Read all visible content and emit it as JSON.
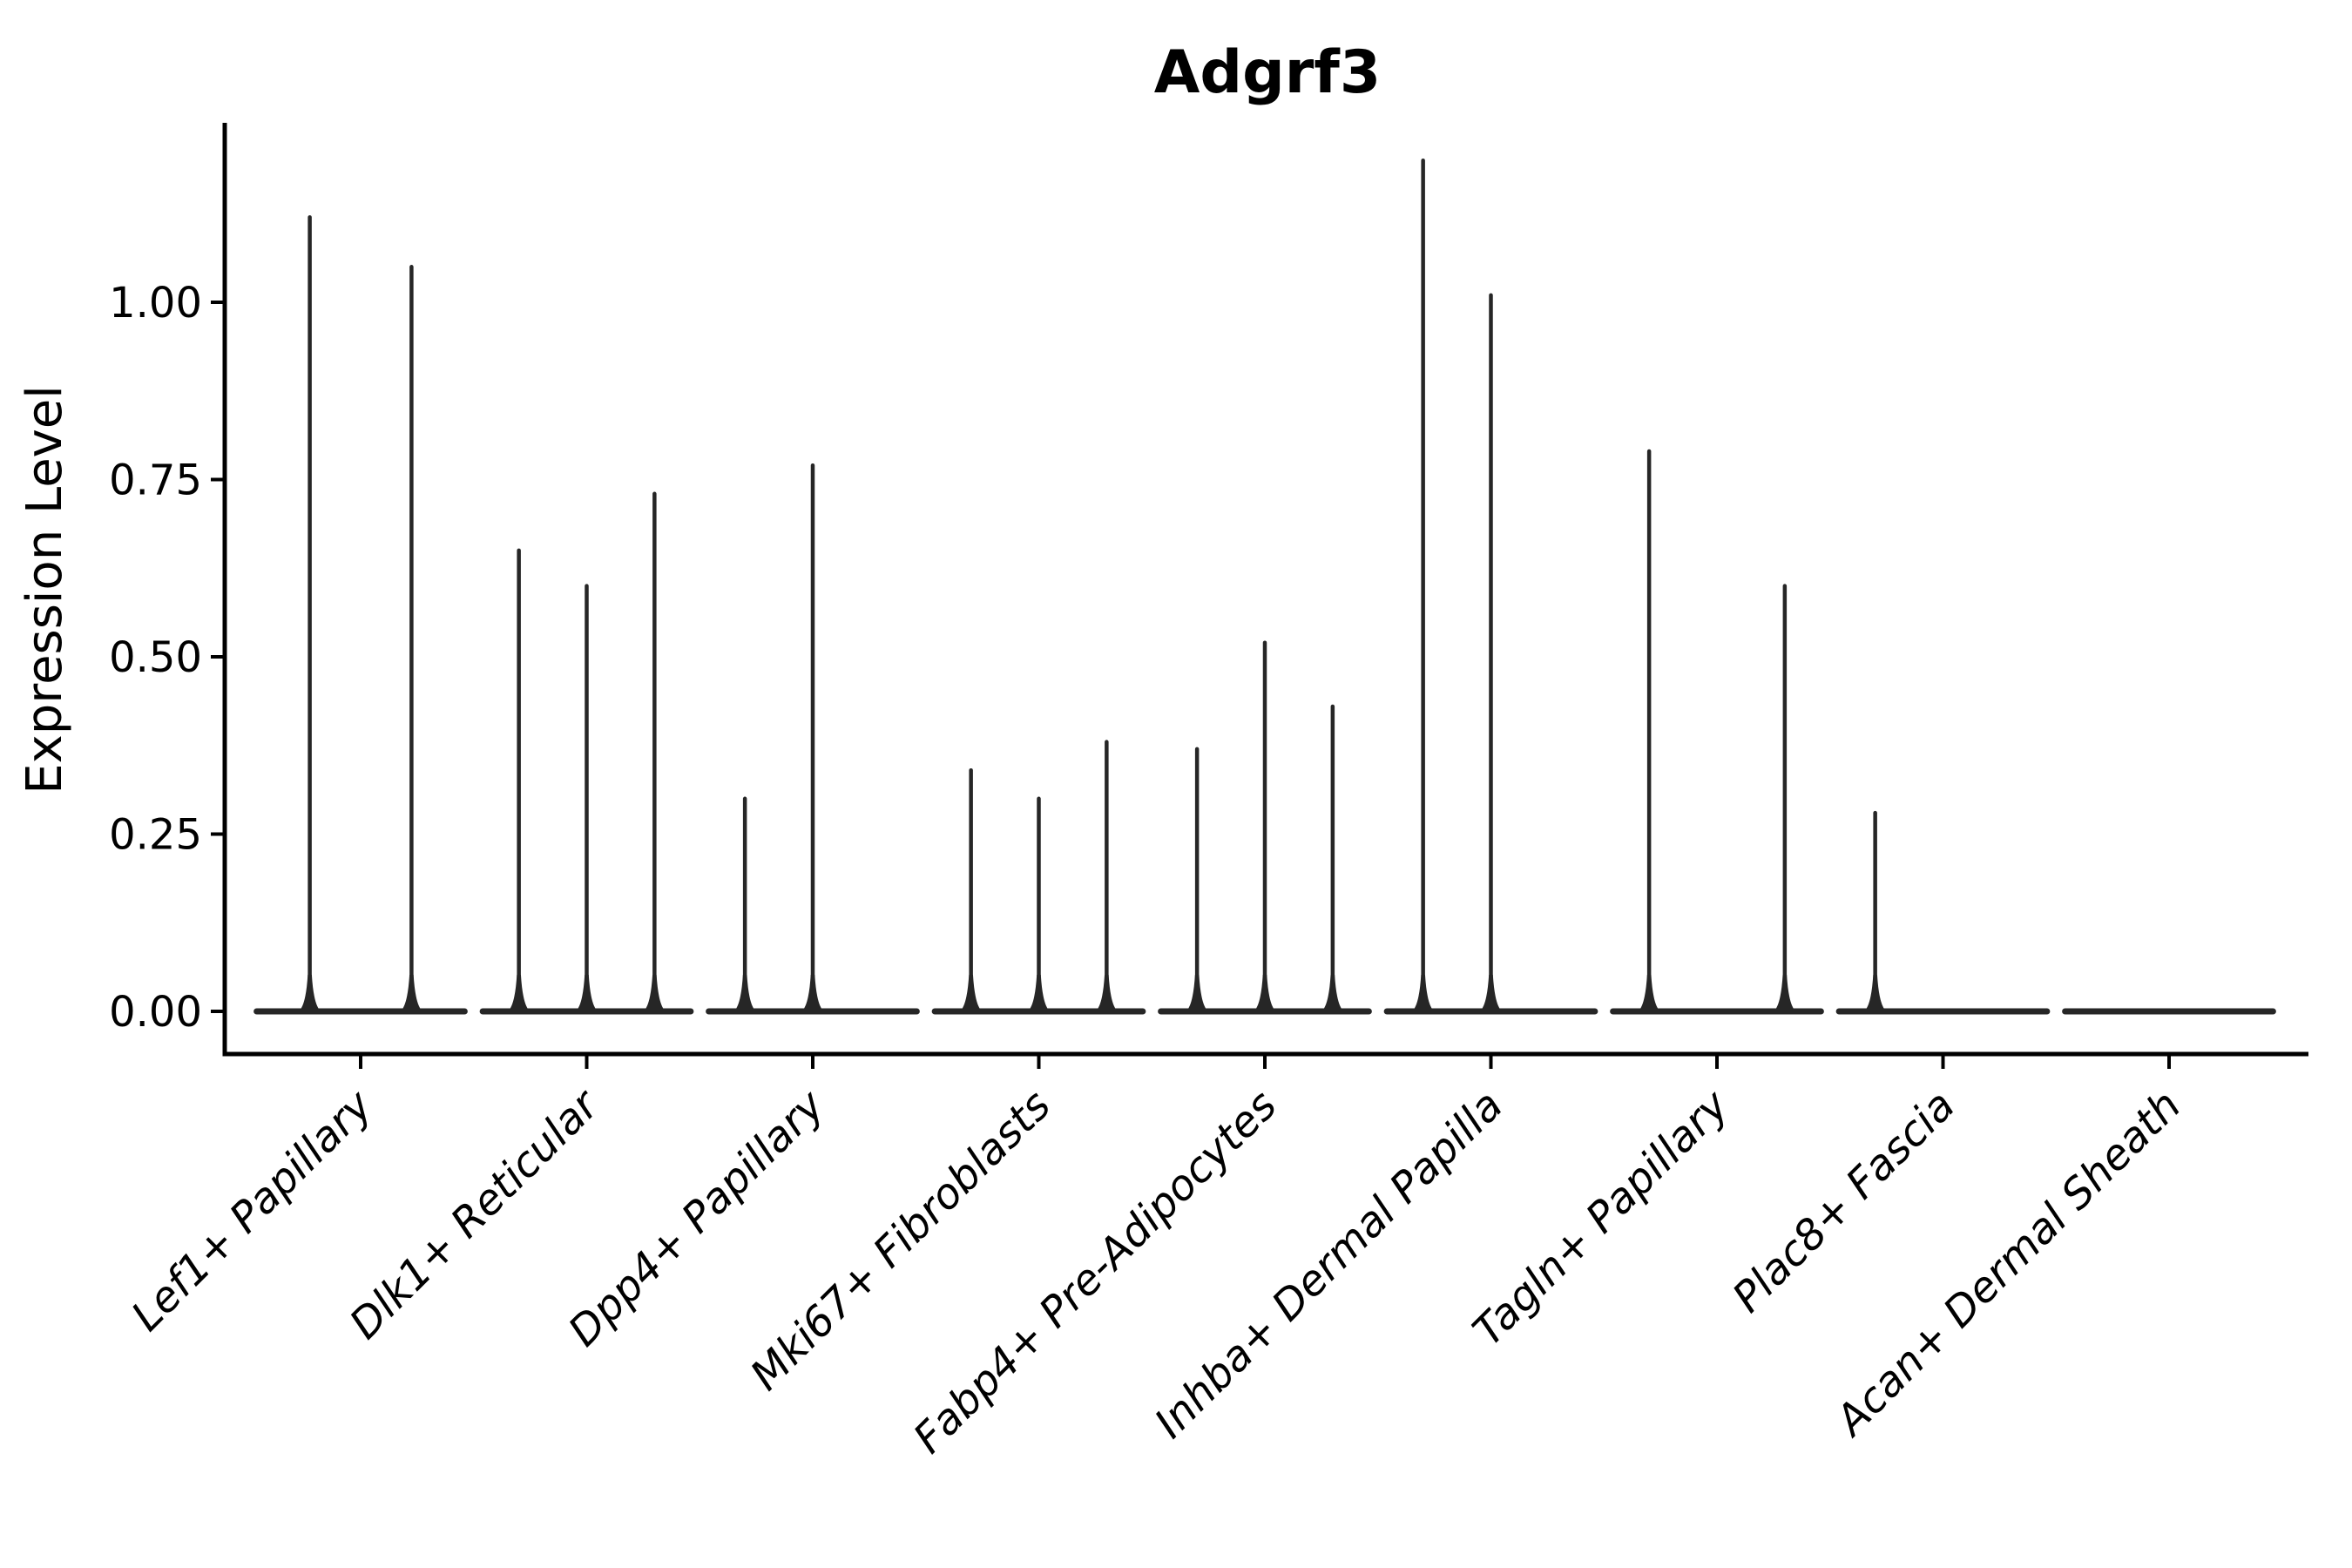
{
  "chart_data": {
    "type": "violin",
    "title": "Adgrf3",
    "ylabel": "Expression Level",
    "xlabel": "",
    "ylim": [
      -0.06,
      1.31
    ],
    "grid": false,
    "legend": "none",
    "note": "Single-cell expression violin plot; violins are collapsed to thin vertical spikes. Each category holds up to 3 dodged sub-violins (offset is fraction of category slot width); spikes list the maximum expression reached by each visible sub-violin.",
    "y_ticks": [
      {
        "value": 0.0,
        "label": "0.00"
      },
      {
        "value": 0.25,
        "label": "0.25"
      },
      {
        "value": 0.5,
        "label": "0.50"
      },
      {
        "value": 0.75,
        "label": "0.75"
      },
      {
        "value": 1.0,
        "label": "1.00"
      }
    ],
    "categories": [
      "Lef1+ Papillary",
      "Dlk1+ Reticular",
      "Dpp4+ Papillary",
      "Mki67+ Fibroblasts",
      "Fabp4+ Pre-Adipocytes",
      "Inhba+ Dermal Papilla",
      "Tagln+ Papillary",
      "Plac8+ Fascia",
      "Acan+ Dermal Sheath"
    ],
    "violins": [
      {
        "category": "Lef1+ Papillary",
        "spikes": [
          {
            "offset": -0.225,
            "max": 1.12
          },
          {
            "offset": 0.225,
            "max": 1.05
          }
        ]
      },
      {
        "category": "Dlk1+ Reticular",
        "spikes": [
          {
            "offset": -0.3,
            "max": 0.65
          },
          {
            "offset": 0,
            "max": 0.6
          },
          {
            "offset": 0.3,
            "max": 0.73
          }
        ]
      },
      {
        "category": "Dpp4+ Papillary",
        "spikes": [
          {
            "offset": -0.3,
            "max": 0.3
          },
          {
            "offset": 0,
            "max": 0.77
          }
        ]
      },
      {
        "category": "Mki67+ Fibroblasts",
        "spikes": [
          {
            "offset": -0.3,
            "max": 0.34
          },
          {
            "offset": 0,
            "max": 0.3
          },
          {
            "offset": 0.3,
            "max": 0.38
          }
        ]
      },
      {
        "category": "Fabp4+ Pre-Adipocytes",
        "spikes": [
          {
            "offset": -0.3,
            "max": 0.37
          },
          {
            "offset": 0,
            "max": 0.52
          },
          {
            "offset": 0.3,
            "max": 0.43
          }
        ]
      },
      {
        "category": "Inhba+ Dermal Papilla",
        "spikes": [
          {
            "offset": -0.3,
            "max": 1.2
          },
          {
            "offset": 0,
            "max": 1.01
          }
        ]
      },
      {
        "category": "Tagln+ Papillary",
        "spikes": [
          {
            "offset": -0.3,
            "max": 0.79
          },
          {
            "offset": 0.3,
            "max": 0.6
          }
        ]
      },
      {
        "category": "Plac8+ Fascia",
        "spikes": [
          {
            "offset": -0.3,
            "max": 0.28
          }
        ]
      },
      {
        "category": "Acan+ Dermal Sheath",
        "spikes": []
      }
    ],
    "baseline_halfwidth": 0.46,
    "colors": {
      "violin_line": "#262626",
      "axis": "#000000",
      "text": "#000000",
      "background": "#ffffff"
    }
  }
}
